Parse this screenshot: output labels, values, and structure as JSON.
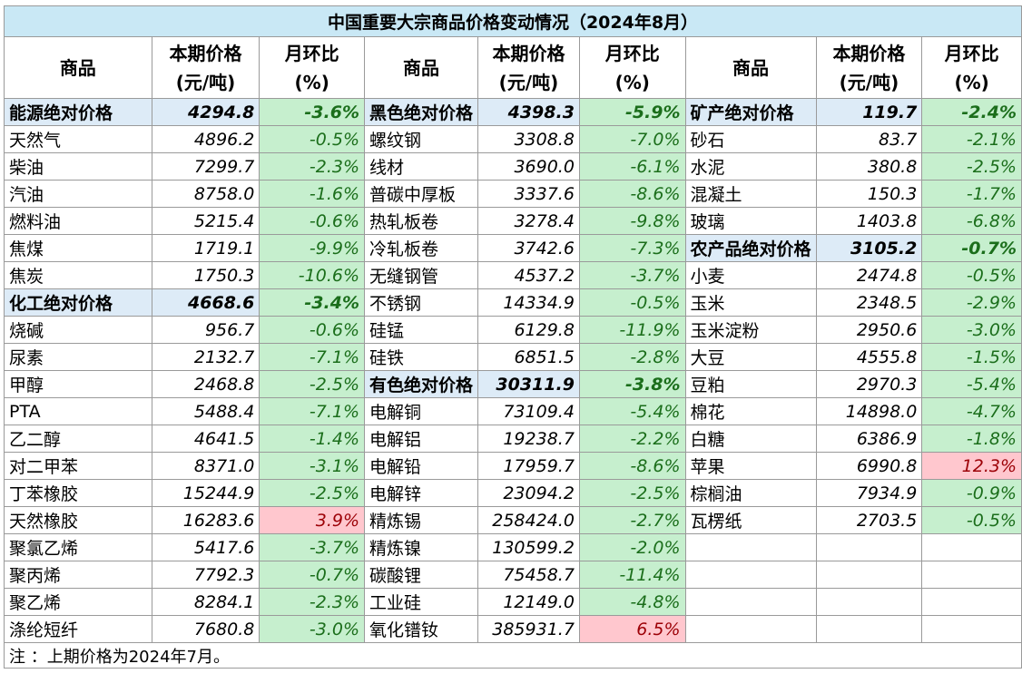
{
  "title": "中国重要大宗商品价格变动情况（2024年8月）",
  "headers": {
    "commodity": "商品",
    "price_line1": "本期价格",
    "price_line2": "(元/吨)",
    "change_line1": "月环比",
    "change_line2": "(%)"
  },
  "columns": [
    {
      "rows": [
        {
          "name": "能源绝对价格",
          "price": "4294.8",
          "change": "-3.6%",
          "aggregate": true
        },
        {
          "name": "天然气",
          "price": "4896.2",
          "change": "-0.5%"
        },
        {
          "name": "柴油",
          "price": "7299.7",
          "change": "-2.3%"
        },
        {
          "name": "汽油",
          "price": "8758.0",
          "change": "-1.6%"
        },
        {
          "name": "燃料油",
          "price": "5215.4",
          "change": "-0.6%"
        },
        {
          "name": "焦煤",
          "price": "1719.1",
          "change": "-9.9%"
        },
        {
          "name": "焦炭",
          "price": "1750.3",
          "change": "-10.6%"
        },
        {
          "name": "化工绝对价格",
          "price": "4668.6",
          "change": "-3.4%",
          "aggregate": true
        },
        {
          "name": "烧碱",
          "price": "956.7",
          "change": "-0.6%"
        },
        {
          "name": "尿素",
          "price": "2132.7",
          "change": "-7.1%"
        },
        {
          "name": "甲醇",
          "price": "2468.8",
          "change": "-2.5%"
        },
        {
          "name": "PTA",
          "price": "5488.4",
          "change": "-7.1%"
        },
        {
          "name": "乙二醇",
          "price": "4641.5",
          "change": "-1.4%"
        },
        {
          "name": "对二甲苯",
          "price": "8371.0",
          "change": "-3.1%"
        },
        {
          "name": "丁苯橡胶",
          "price": "15244.9",
          "change": "-2.5%"
        },
        {
          "name": "天然橡胶",
          "price": "16283.6",
          "change": "3.9%"
        },
        {
          "name": "聚氯乙烯",
          "price": "5417.6",
          "change": "-3.7%"
        },
        {
          "name": "聚丙烯",
          "price": "7792.3",
          "change": "-0.7%"
        },
        {
          "name": "聚乙烯",
          "price": "8284.1",
          "change": "-2.3%"
        },
        {
          "name": "涤纶短纤",
          "price": "7680.8",
          "change": "-3.0%"
        }
      ]
    },
    {
      "rows": [
        {
          "name": "黑色绝对价格",
          "price": "4398.3",
          "change": "-5.9%",
          "aggregate": true
        },
        {
          "name": "螺纹钢",
          "price": "3308.8",
          "change": "-7.0%"
        },
        {
          "name": "线材",
          "price": "3690.0",
          "change": "-6.1%"
        },
        {
          "name": "普碳中厚板",
          "price": "3337.6",
          "change": "-8.6%"
        },
        {
          "name": "热轧板卷",
          "price": "3278.4",
          "change": "-9.8%"
        },
        {
          "name": "冷轧板卷",
          "price": "3742.6",
          "change": "-7.3%"
        },
        {
          "name": "无缝钢管",
          "price": "4537.2",
          "change": "-3.7%"
        },
        {
          "name": "不锈钢",
          "price": "14334.9",
          "change": "-0.5%"
        },
        {
          "name": "硅锰",
          "price": "6129.8",
          "change": "-11.9%"
        },
        {
          "name": "硅铁",
          "price": "6851.5",
          "change": "-2.8%"
        },
        {
          "name": "有色绝对价格",
          "price": "30311.9",
          "change": "-3.8%",
          "aggregate": true
        },
        {
          "name": "电解铜",
          "price": "73109.4",
          "change": "-5.4%"
        },
        {
          "name": "电解铝",
          "price": "19238.7",
          "change": "-2.2%"
        },
        {
          "name": "电解铅",
          "price": "17959.7",
          "change": "-8.6%"
        },
        {
          "name": "电解锌",
          "price": "23094.2",
          "change": "-2.5%"
        },
        {
          "name": "精炼锡",
          "price": "258424.0",
          "change": "-2.7%"
        },
        {
          "name": "精炼镍",
          "price": "130599.2",
          "change": "-2.0%"
        },
        {
          "name": "碳酸锂",
          "price": "75458.7",
          "change": "-11.4%"
        },
        {
          "name": "工业硅",
          "price": "12149.0",
          "change": "-4.8%"
        },
        {
          "name": "氧化镨钕",
          "price": "385931.7",
          "change": "6.5%"
        }
      ]
    },
    {
      "rows": [
        {
          "name": "矿产绝对价格",
          "price": "119.7",
          "change": "-2.4%",
          "aggregate": true
        },
        {
          "name": "砂石",
          "price": "83.7",
          "change": "-2.1%"
        },
        {
          "name": "水泥",
          "price": "380.8",
          "change": "-2.5%"
        },
        {
          "name": "混凝土",
          "price": "150.3",
          "change": "-1.7%"
        },
        {
          "name": "玻璃",
          "price": "1403.8",
          "change": "-6.8%"
        },
        {
          "name": "农产品绝对价格",
          "price": "3105.2",
          "change": "-0.7%",
          "aggregate": true
        },
        {
          "name": "小麦",
          "price": "2474.8",
          "change": "-0.5%"
        },
        {
          "name": "玉米",
          "price": "2348.5",
          "change": "-2.9%"
        },
        {
          "name": "玉米淀粉",
          "price": "2950.6",
          "change": "-3.0%"
        },
        {
          "name": "大豆",
          "price": "4555.8",
          "change": "-1.5%"
        },
        {
          "name": "豆粕",
          "price": "2970.3",
          "change": "-5.4%"
        },
        {
          "name": "棉花",
          "price": "14898.0",
          "change": "-4.7%"
        },
        {
          "name": "白糖",
          "price": "6386.9",
          "change": "-1.8%"
        },
        {
          "name": "苹果",
          "price": "6990.8",
          "change": "12.3%"
        },
        {
          "name": "棕榈油",
          "price": "7934.9",
          "change": "-0.9%"
        },
        {
          "name": "瓦楞纸",
          "price": "2703.5",
          "change": "-0.5%"
        }
      ]
    }
  ],
  "note": "注 ：上期价格为2024年7月。",
  "colors": {
    "title_bg": "#c9e8f5",
    "aggregate_bg": "#ddebf7",
    "negative_bg": "#c6efce",
    "negative_text": "#1b6e1b",
    "positive_bg": "#ffc7ce",
    "positive_text": "#9c0006"
  }
}
